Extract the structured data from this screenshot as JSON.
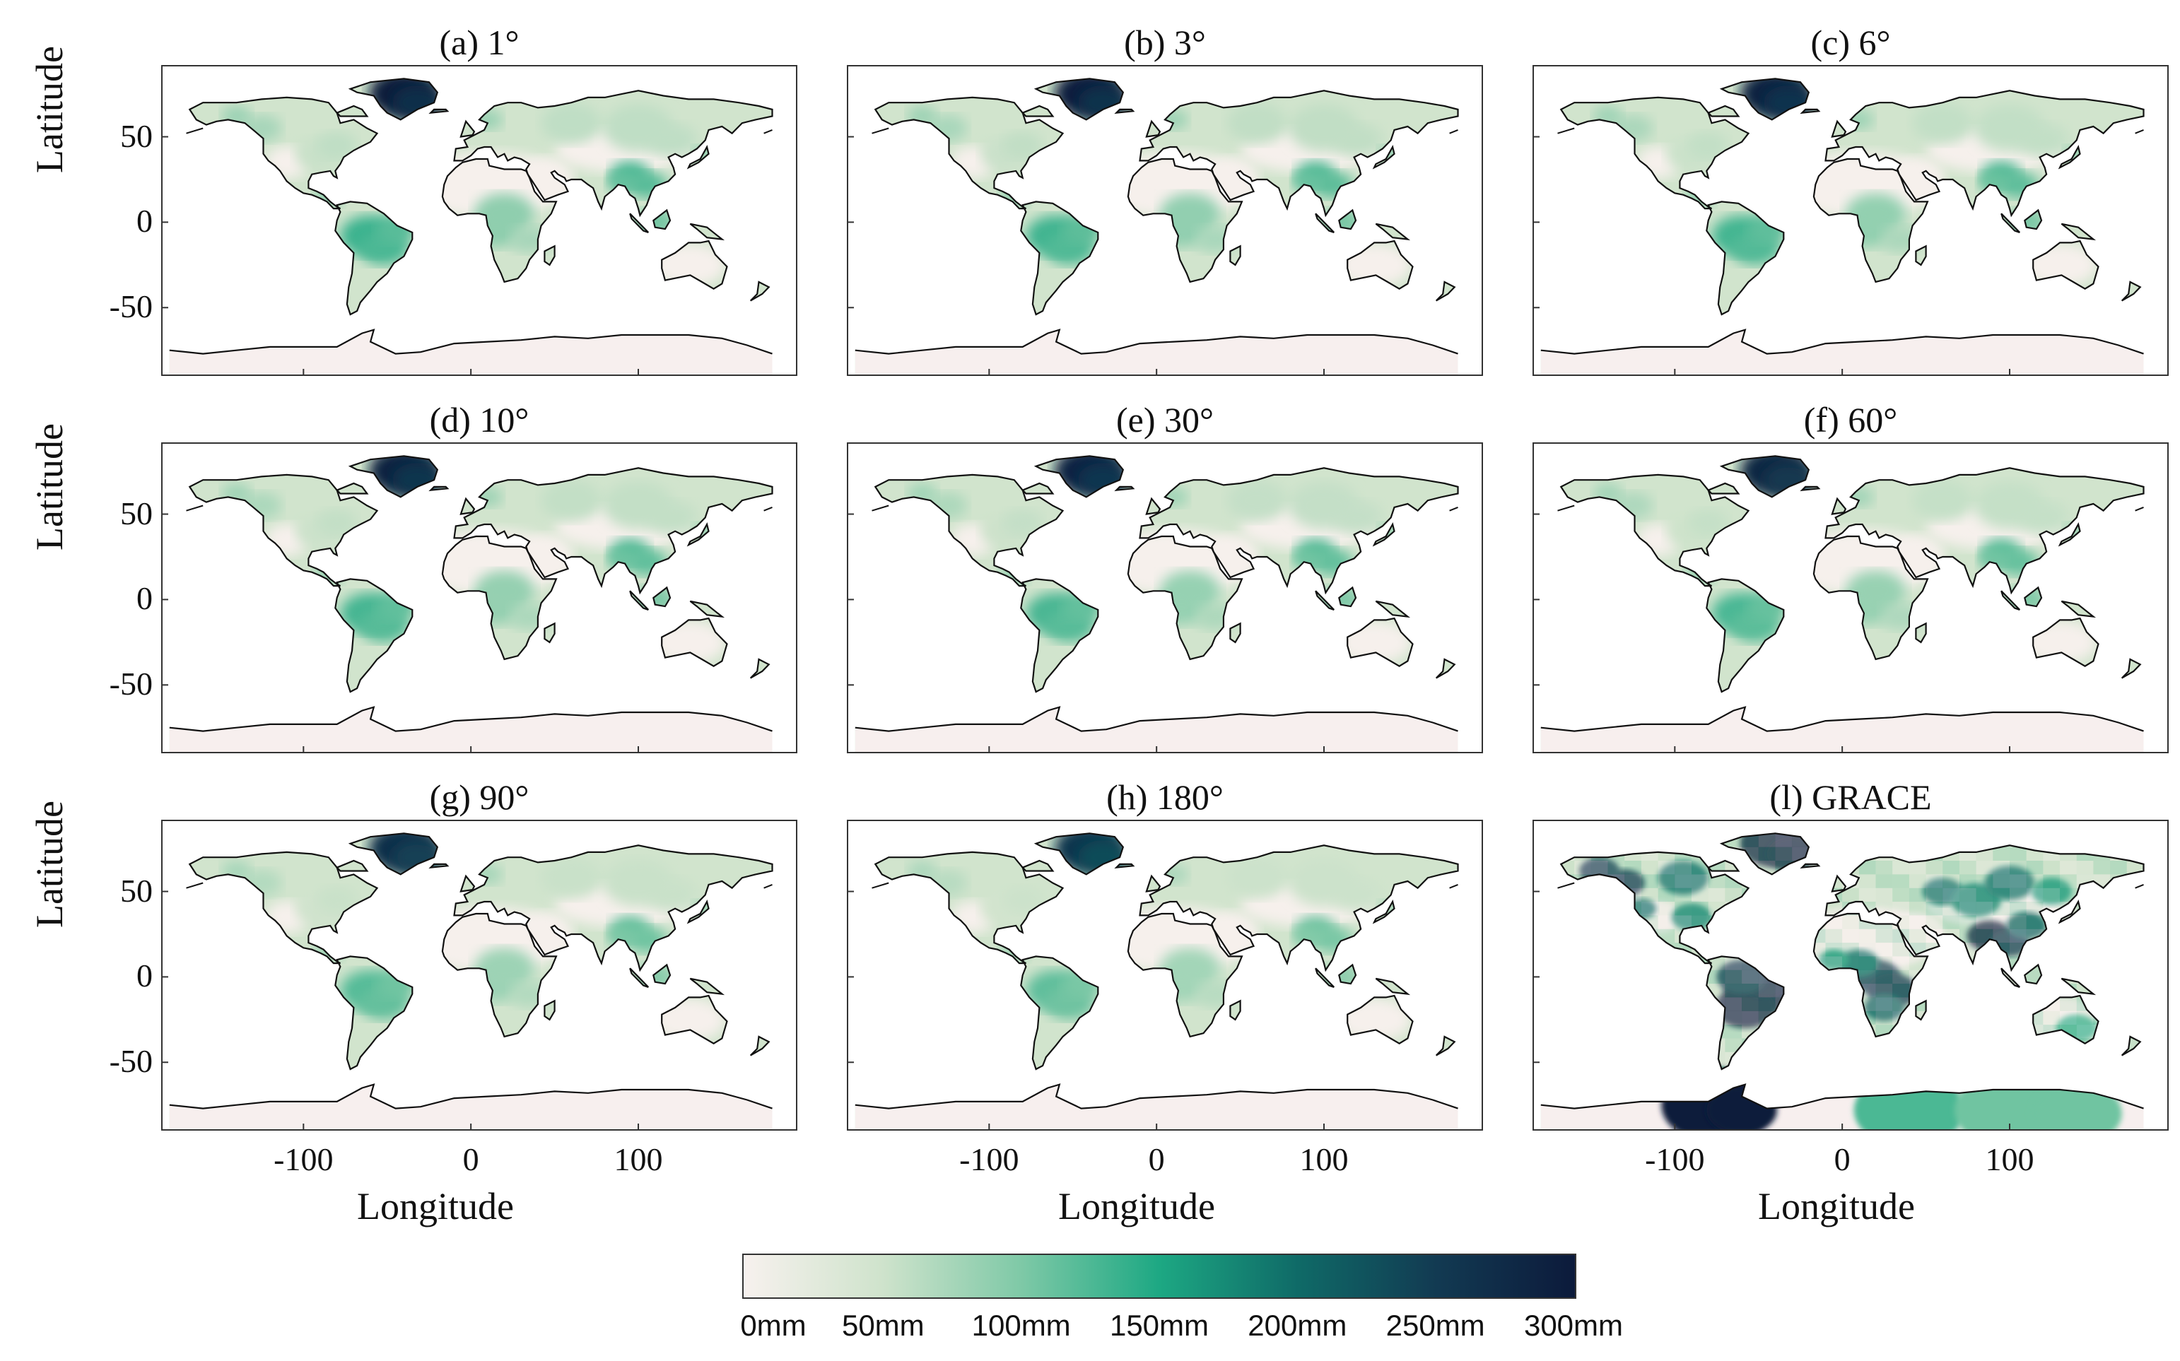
{
  "panels": [
    {
      "title": "(a) 1°",
      "style": "model",
      "intensity": 1.0
    },
    {
      "title": "(b) 3°",
      "style": "model",
      "intensity": 0.98
    },
    {
      "title": "(c) 6°",
      "style": "model",
      "intensity": 0.97
    },
    {
      "title": "(d) 10°",
      "style": "model",
      "intensity": 0.96
    },
    {
      "title": "(e) 30°",
      "style": "model",
      "intensity": 0.95
    },
    {
      "title": "(f) 60°",
      "style": "model",
      "intensity": 0.94
    },
    {
      "title": "(g) 90°",
      "style": "model",
      "intensity": 0.9
    },
    {
      "title": "(h) 180°",
      "style": "model",
      "intensity": 0.86
    },
    {
      "title": "(l) GRACE",
      "style": "grace",
      "intensity": 1.2
    }
  ],
  "axes": {
    "ylabel": "Latitude",
    "xlabel": "Longitude",
    "yticks": [
      "50",
      "0",
      "-50"
    ],
    "xticks": [
      "-100",
      "0",
      "100"
    ]
  },
  "colorbar": {
    "ticks": [
      "0mm",
      "50mm",
      "100mm",
      "150mm",
      "200mm",
      "250mm",
      "300mm"
    ],
    "colors": [
      "#f7f1ee",
      "#cfe3cc",
      "#7fc9a7",
      "#1da883",
      "#0f6a67",
      "#123a52",
      "#0c1a3b"
    ]
  }
}
